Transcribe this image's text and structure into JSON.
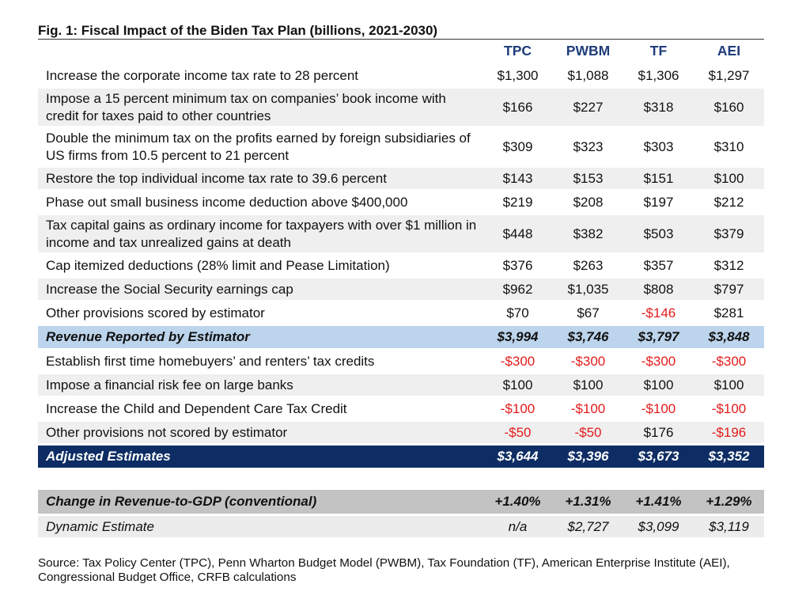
{
  "figure": {
    "title": "Fig. 1: Fiscal Impact of the Biden Tax Plan (billions, 2021-2030)",
    "source": "Source: Tax Policy Center (TPC), Penn Wharton Budget Model (PWBM), Tax Foundation (TF), American Enterprise Institute (AEI), Congressional Budget Office, CRFB calculations"
  },
  "columns": [
    "",
    "TPC",
    "PWBM",
    "TF",
    "AEI"
  ],
  "rows": [
    {
      "label": "Increase the corporate income tax rate to 28 percent",
      "values": [
        "$1,300",
        "$1,088",
        "$1,306",
        "$1,297"
      ]
    },
    {
      "label": "Impose a 15 percent minimum tax on companies’ book income with credit for taxes paid to other countries",
      "values": [
        "$166",
        "$227",
        "$318",
        "$160"
      ]
    },
    {
      "label": "Double the minimum tax on the profits earned by foreign subsidiaries of US firms from 10.5 percent to 21 percent",
      "values": [
        "$309",
        "$323",
        "$303",
        "$310"
      ]
    },
    {
      "label": "Restore the top individual income tax rate to 39.6 percent",
      "values": [
        "$143",
        "$153",
        "$151",
        "$100"
      ]
    },
    {
      "label": "Phase out small business income deduction above $400,000",
      "values": [
        "$219",
        "$208",
        "$197",
        "$212"
      ]
    },
    {
      "label": "Tax capital gains as ordinary income for taxpayers with over $1 million in income and tax unrealized gains at death",
      "values": [
        "$448",
        "$382",
        "$503",
        "$379"
      ]
    },
    {
      "label": "Cap itemized deductions (28% limit and Pease Limitation)",
      "values": [
        "$376",
        "$263",
        "$357",
        "$312"
      ]
    },
    {
      "label": "Increase the Social Security earnings cap",
      "values": [
        "$962",
        "$1,035",
        "$808",
        "$797"
      ]
    },
    {
      "label": "Other provisions scored by estimator",
      "values": [
        "$70",
        "$67",
        "-$146",
        "$281"
      ]
    },
    {
      "label": "Revenue Reported by Estimator",
      "values": [
        "$3,994",
        "$3,746",
        "$3,797",
        "$3,848"
      ]
    },
    {
      "label": "Establish first time homebuyers’ and renters’ tax credits",
      "values": [
        "-$300",
        "-$300",
        "-$300",
        "-$300"
      ]
    },
    {
      "label": "Impose a financial risk fee on large banks",
      "values": [
        "$100",
        "$100",
        "$100",
        "$100"
      ]
    },
    {
      "label": "Increase the Child and Dependent Care Tax Credit",
      "values": [
        "-$100",
        "-$100",
        "-$100",
        "-$100"
      ]
    },
    {
      "label": "Other provisions not scored by estimator",
      "values": [
        "-$50",
        "-$50",
        "$176",
        "-$196"
      ]
    },
    {
      "label": "Adjusted Estimates",
      "values": [
        "$3,644",
        "$3,396",
        "$3,673",
        "$3,352"
      ]
    },
    {
      "label": "Change in Revenue-to-GDP (conventional)",
      "values": [
        "+1.40%",
        "+1.31%",
        "+1.41%",
        "+1.29%"
      ]
    },
    {
      "label": "Dynamic Estimate",
      "values": [
        "n/a",
        "$2,727",
        "$3,099",
        "$3,119"
      ]
    }
  ],
  "colors": {
    "header_text": "#1f3d7a",
    "revenue_row_bg": "#bcd4ec",
    "adjusted_row_bg": "#0e2d64",
    "gdp_row_bg": "#c3c3c3",
    "shaded_row_bg": "#efefef",
    "negative_text": "#e41b1b"
  }
}
